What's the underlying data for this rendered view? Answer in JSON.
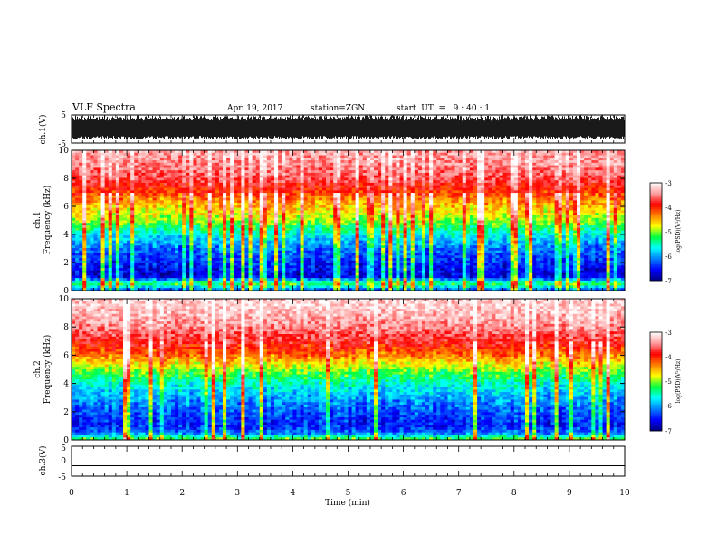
{
  "header": {
    "title": "VLF Spectra",
    "date": "Apr. 19, 2017",
    "station": "station=ZGN",
    "start": "start  UT  =   9 : 40 : 1"
  },
  "colors": {
    "colormap": [
      "#00007f",
      "#0000ff",
      "#0080ff",
      "#00ffff",
      "#00ff40",
      "#ffff00",
      "#ff8000",
      "#ff0000",
      "#ff9c9c",
      "#ffffff"
    ],
    "trace": "#000000",
    "axis": "#000000"
  },
  "chart_data": [
    {
      "type": "line",
      "name": "ch1-waveform",
      "ylabel": "ch.1(V)",
      "ylim": [
        -5,
        5
      ],
      "yticks": [
        "5",
        "-5"
      ],
      "xlim": [
        0,
        10
      ],
      "description_of_data": "dense noisy burst waveform mostly spanning about -2.5 to 3.5 V"
    },
    {
      "type": "heatmap",
      "name": "ch1-spectrogram",
      "ylabel": "ch.1\nFrequency (kHz)",
      "ylabel_lines": [
        "ch.1",
        "Frequency (kHz)"
      ],
      "ylim": [
        0,
        10
      ],
      "yticks": [
        "0",
        "2",
        "4",
        "6",
        "8",
        "10"
      ],
      "xlim": [
        0,
        10
      ],
      "colorbar": {
        "label": "log(PSD)(V²/Hz)",
        "range": [
          -7,
          -3
        ],
        "ticks": [
          "-3",
          "-4",
          "-5",
          "-6",
          "-7"
        ]
      },
      "profile_khz_to_logpsd": [
        [
          0,
          -6.4
        ],
        [
          0.5,
          -5.2
        ],
        [
          1,
          -6.7
        ],
        [
          2,
          -6.5
        ],
        [
          3,
          -6.2
        ],
        [
          4,
          -5.7
        ],
        [
          5,
          -5.0
        ],
        [
          6,
          -4.6
        ],
        [
          7,
          -4.1
        ],
        [
          8,
          -3.7
        ],
        [
          9,
          -3.5
        ],
        [
          10,
          -3.4
        ]
      ]
    },
    {
      "type": "heatmap",
      "name": "ch2-spectrogram",
      "ylabel": "ch.2\nFrequency (kHz)",
      "ylabel_lines": [
        "ch.2",
        "Frequency (kHz)"
      ],
      "ylim": [
        0,
        10
      ],
      "yticks": [
        "0",
        "2",
        "4",
        "6",
        "8",
        "10"
      ],
      "xlim": [
        0,
        10
      ],
      "colorbar": {
        "label": "log(PSD)(V²/Hz)",
        "range": [
          -7,
          -3
        ],
        "ticks": [
          "-3",
          "-4",
          "-5",
          "-6",
          "-7"
        ]
      },
      "profile_khz_to_logpsd": [
        [
          0,
          -5.0
        ],
        [
          0.5,
          -6.2
        ],
        [
          1,
          -6.5
        ],
        [
          2,
          -6.3
        ],
        [
          3,
          -6.0
        ],
        [
          4,
          -5.6
        ],
        [
          5,
          -5.0
        ],
        [
          6,
          -4.3
        ],
        [
          7,
          -3.8
        ],
        [
          8,
          -3.5
        ],
        [
          9,
          -3.3
        ],
        [
          10,
          -3.2
        ]
      ]
    },
    {
      "type": "line",
      "name": "ch3-waveform",
      "ylabel": "ch.3(V)",
      "ylim": [
        -5,
        5
      ],
      "yticks": [
        "5",
        "0",
        "-5"
      ],
      "xlim": [
        0,
        10
      ],
      "xlabel": "Time (min)",
      "xticks": [
        "0",
        "1",
        "2",
        "3",
        "4",
        "5",
        "6",
        "7",
        "8",
        "9",
        "10"
      ],
      "flat_value": -1.5
    }
  ]
}
